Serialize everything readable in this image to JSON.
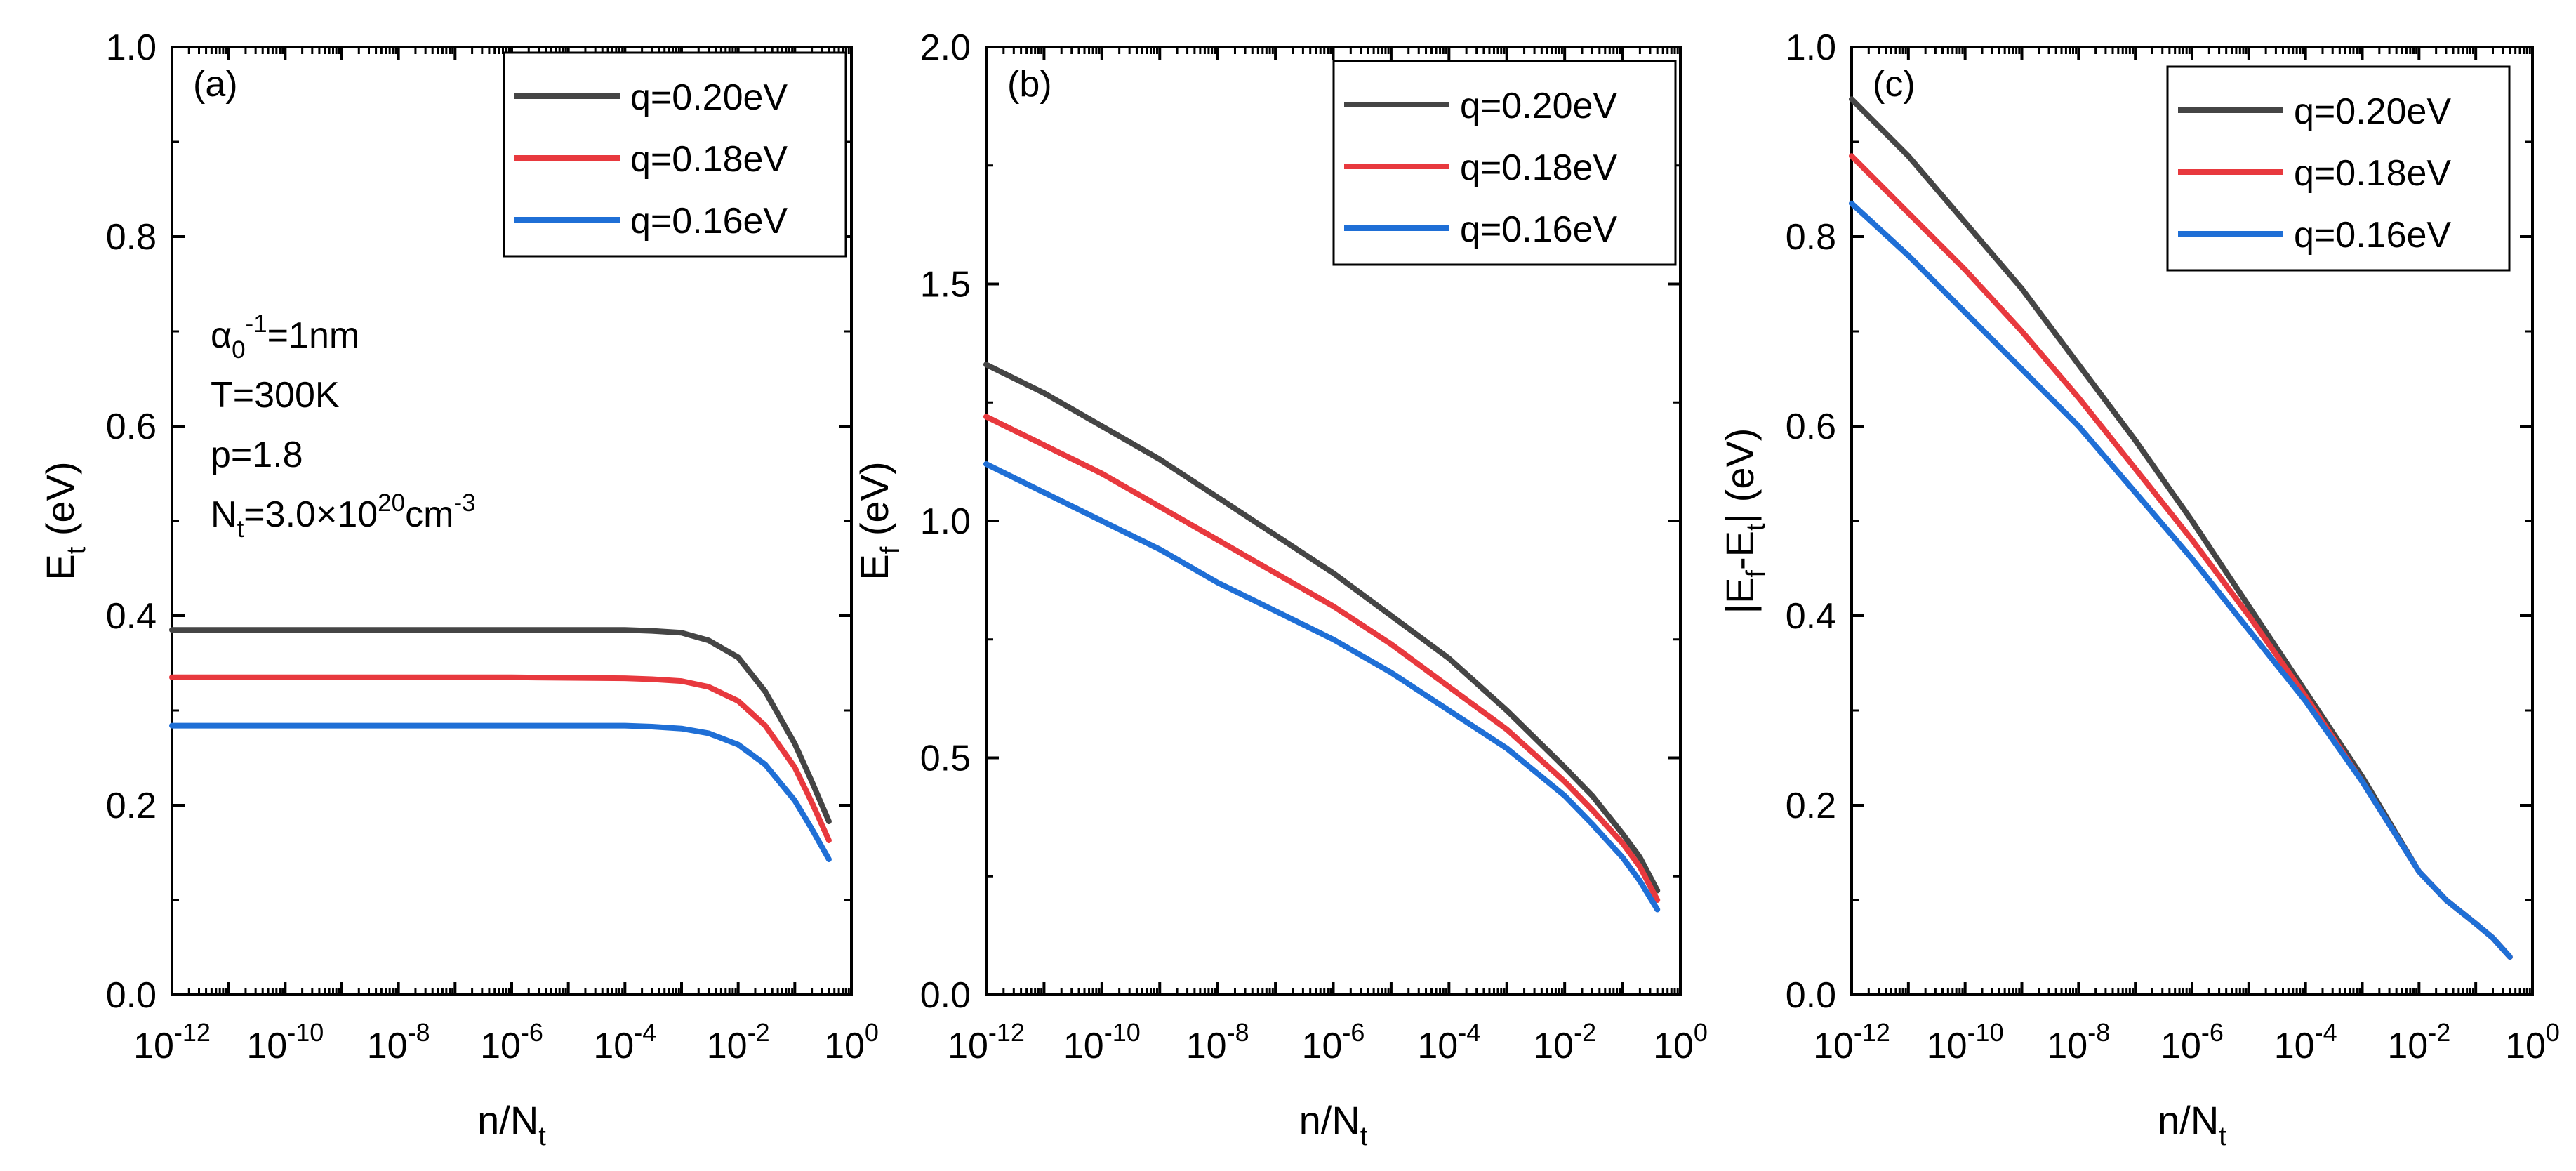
{
  "chart_data": [
    {
      "type": "line",
      "panel_label": "(a)",
      "xlabel": {
        "main": "n/N",
        "sub": "t"
      },
      "ylabel": {
        "main": "E",
        "sub": "t",
        "rest": " (eV)"
      },
      "xscale": "log",
      "x_exponents": [
        -12,
        -10,
        -8,
        -6,
        -4,
        -2,
        0
      ],
      "xlim": [
        1e-12,
        1
      ],
      "ylim": [
        0,
        1.0
      ],
      "yticks": [
        "0.0",
        "0.2",
        "0.4",
        "0.6",
        "0.8",
        "1.0"
      ],
      "legend_position": "top-right",
      "annotations": [
        {
          "main": "α",
          "sub": "0",
          "sup": "-1",
          "rest": "=1nm"
        },
        {
          "main": "T=300K"
        },
        {
          "main": "p=1.8"
        },
        {
          "main": "N",
          "sub": "t",
          "rest": "=3.0×10",
          "sup2": "20",
          "rest2": "cm",
          "sup3": "-3"
        }
      ],
      "x": [
        1e-12,
        1e-10,
        1e-08,
        1e-06,
        0.0001,
        0.0003,
        0.001,
        0.003,
        0.01,
        0.03,
        0.1,
        0.2,
        0.4
      ],
      "series": [
        {
          "name": "q=0.20eV",
          "color": "#454545",
          "values": [
            0.385,
            0.385,
            0.385,
            0.385,
            0.385,
            0.384,
            0.382,
            0.374,
            0.356,
            0.32,
            0.265,
            0.225,
            0.183
          ]
        },
        {
          "name": "q=0.18eV",
          "color": "#e8393e",
          "values": [
            0.335,
            0.335,
            0.335,
            0.335,
            0.334,
            0.333,
            0.331,
            0.325,
            0.31,
            0.284,
            0.24,
            0.203,
            0.163
          ]
        },
        {
          "name": "q=0.16eV",
          "color": "#1f6fd6",
          "values": [
            0.284,
            0.284,
            0.284,
            0.284,
            0.284,
            0.283,
            0.281,
            0.276,
            0.264,
            0.243,
            0.205,
            0.175,
            0.143
          ]
        }
      ]
    },
    {
      "type": "line",
      "panel_label": "(b)",
      "xlabel": {
        "main": "n/N",
        "sub": "t"
      },
      "ylabel": {
        "main": "E",
        "sub": "f",
        "rest": " (eV)"
      },
      "xscale": "log",
      "x_exponents": [
        -12,
        -10,
        -8,
        -6,
        -4,
        -2,
        0
      ],
      "xlim": [
        1e-12,
        1
      ],
      "ylim": [
        0,
        2.0
      ],
      "yticks": [
        "0.0",
        "0.5",
        "1.0",
        "1.5",
        "2.0"
      ],
      "legend_position": "top-right",
      "annotations": [],
      "x": [
        1e-12,
        1e-11,
        1e-10,
        1e-09,
        1e-08,
        1e-07,
        1e-06,
        1e-05,
        0.0001,
        0.001,
        0.01,
        0.03,
        0.1,
        0.2,
        0.4
      ],
      "series": [
        {
          "name": "q=0.20eV",
          "color": "#454545",
          "values": [
            1.33,
            1.27,
            1.2,
            1.13,
            1.05,
            0.97,
            0.89,
            0.8,
            0.71,
            0.6,
            0.48,
            0.42,
            0.34,
            0.29,
            0.22
          ]
        },
        {
          "name": "q=0.18eV",
          "color": "#e8393e",
          "values": [
            1.22,
            1.16,
            1.1,
            1.03,
            0.96,
            0.89,
            0.82,
            0.74,
            0.65,
            0.56,
            0.45,
            0.39,
            0.32,
            0.27,
            0.2
          ]
        },
        {
          "name": "q=0.16eV",
          "color": "#1f6fd6",
          "values": [
            1.12,
            1.06,
            1.0,
            0.94,
            0.87,
            0.81,
            0.75,
            0.68,
            0.6,
            0.52,
            0.42,
            0.36,
            0.29,
            0.24,
            0.18
          ]
        }
      ]
    },
    {
      "type": "line",
      "panel_label": "(c)",
      "xlabel": {
        "main": "n/N",
        "sub": "t"
      },
      "ylabel": {
        "main": "|E",
        "sub": "f",
        "rest": "-E",
        "sub2": "t",
        "rest2": "| (eV)"
      },
      "xscale": "log",
      "x_exponents": [
        -12,
        -10,
        -8,
        -6,
        -4,
        -2,
        0
      ],
      "xlim": [
        1e-12,
        1
      ],
      "ylim": [
        0,
        1.0
      ],
      "yticks": [
        "0.0",
        "0.2",
        "0.4",
        "0.6",
        "0.8",
        "1.0"
      ],
      "legend_position": "top-right",
      "annotations": [],
      "x": [
        1e-12,
        1e-11,
        1e-10,
        1e-09,
        1e-08,
        1e-07,
        1e-06,
        1e-05,
        0.0001,
        0.001,
        0.01,
        0.03,
        0.1,
        0.2,
        0.4
      ],
      "series": [
        {
          "name": "q=0.20eV",
          "color": "#454545",
          "values": [
            0.945,
            0.885,
            0.815,
            0.745,
            0.665,
            0.585,
            0.5,
            0.41,
            0.32,
            0.23,
            0.13,
            0.1,
            0.075,
            0.06,
            0.04
          ]
        },
        {
          "name": "q=0.18eV",
          "color": "#e8393e",
          "values": [
            0.885,
            0.825,
            0.765,
            0.7,
            0.63,
            0.555,
            0.48,
            0.4,
            0.315,
            0.225,
            0.13,
            0.1,
            0.075,
            0.06,
            0.04
          ]
        },
        {
          "name": "q=0.16eV",
          "color": "#1f6fd6",
          "values": [
            0.835,
            0.78,
            0.72,
            0.66,
            0.6,
            0.53,
            0.46,
            0.385,
            0.31,
            0.225,
            0.13,
            0.1,
            0.075,
            0.06,
            0.04
          ]
        }
      ]
    }
  ]
}
